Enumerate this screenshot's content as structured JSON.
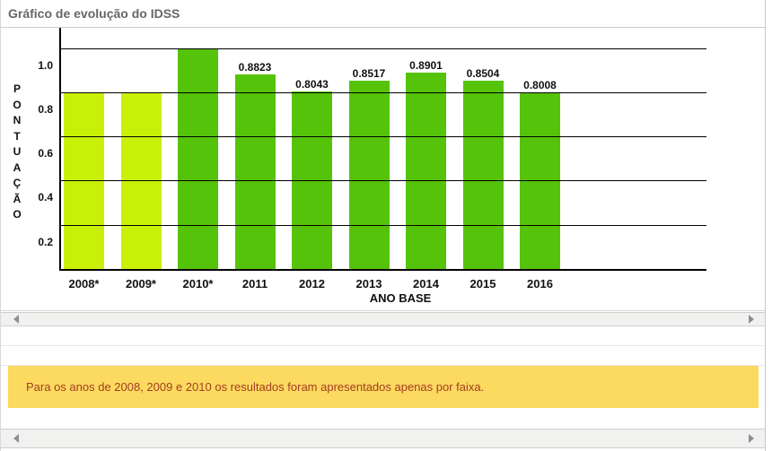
{
  "header": {
    "title": "Gráfico de evolução do IDSS"
  },
  "chart_data": {
    "type": "bar",
    "title": "Gráfico de evolução do IDSS",
    "categories": [
      "2008*",
      "2009*",
      "2010*",
      "2011",
      "2012",
      "2013",
      "2014",
      "2015",
      "2016"
    ],
    "values": [
      0.8,
      0.8,
      1.0,
      0.8823,
      0.8043,
      0.8517,
      0.8901,
      0.8504,
      0.8008
    ],
    "value_labels": [
      "",
      "",
      "",
      "0.8823",
      "0.8043",
      "0.8517",
      "0.8901",
      "0.8504",
      "0.8008"
    ],
    "bar_colors": [
      "#c9f108",
      "#c9f108",
      "#55c30a",
      "#55c30a",
      "#55c30a",
      "#55c30a",
      "#55c30a",
      "#55c30a",
      "#55c30a"
    ],
    "xlabel": "ANO BASE",
    "ylabel": "PONTUAÇÃO",
    "ytick_labels": [
      "1.0",
      "0.8",
      "0.6",
      "0.4",
      "0.2"
    ],
    "yticks": [
      1.0,
      0.8,
      0.6,
      0.4,
      0.2
    ],
    "ylim": [
      0,
      1.1
    ],
    "grid": "horizontal-over-bars",
    "legend": "none"
  },
  "scrollbars": {
    "top": {
      "left_icon": "scroll-left-arrow",
      "right_icon": "scroll-right-arrow"
    },
    "bottom": {
      "left_icon": "scroll-left-arrow",
      "right_icon": "scroll-right-arrow"
    }
  },
  "notice": {
    "text": "Para os anos de 2008, 2009 e 2010 os resultados foram apresentados apenas por faixa.",
    "bg": "#fcda5f",
    "text_color": "#a33c22"
  },
  "colors": {
    "title": "#666666",
    "axis": "#000000",
    "grid": "#000000",
    "tick_label": "#111111",
    "faixa_bar": "#c9f108",
    "value_bar": "#55c30a",
    "scrollbar_bg": "#f1f1f0",
    "scrollbar_border": "#cfcfcf",
    "scroll_arrow": "#8f8f8f",
    "panel_border": "#cccccc"
  }
}
